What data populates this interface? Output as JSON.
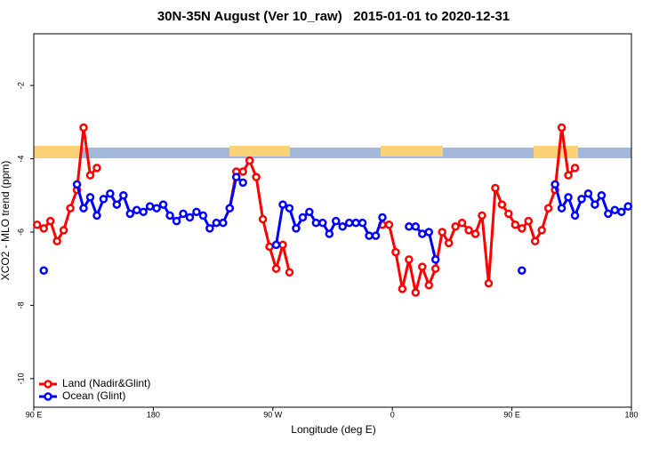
{
  "chart_data": {
    "type": "line",
    "title": "30N-35N August (Ver 10_raw)   2015-01-01 to 2020-12-31",
    "x_label": "Longitude (deg E)",
    "y_label": "XCO2 - MLO trend (ppm)",
    "xlim": [
      90,
      540
    ],
    "xticks": [
      {
        "value": 90,
        "label": "90 E"
      },
      180,
      {
        "value": 270,
        "label": "90 W"
      },
      {
        "value": 360,
        "label": "0"
      },
      {
        "value": 450,
        "label": "90 E"
      },
      180
    ],
    "ylim": [
      -10.78,
      -0.59
    ],
    "yticks": [
      -2,
      -4,
      -6,
      -8,
      -10
    ],
    "legend": "bottomleft",
    "grid": false,
    "x": [
      92.5,
      97.5,
      102.5,
      107.5,
      112.5,
      117.5,
      122.5,
      127.5,
      132.5,
      137.5,
      142.5,
      147.5,
      152.5,
      157.5,
      162.5,
      167.5,
      172.5,
      177.5,
      182.5,
      187.5,
      192.5,
      197.5,
      202.5,
      207.5,
      212.5,
      217.5,
      222.5,
      227.5,
      232.5,
      237.5,
      242.5,
      247.5,
      252.5,
      257.5,
      262.5,
      267.5,
      272.5,
      277.5,
      282.5,
      287.5,
      292.5,
      297.5,
      302.5,
      307.5,
      312.5,
      317.5,
      322.5,
      327.5,
      332.5,
      337.5,
      342.5,
      347.5,
      352.5,
      357.5,
      362.5,
      367.5,
      372.5,
      377.5,
      382.5,
      387.5,
      392.5,
      397.5,
      402.5,
      407.5,
      412.5,
      417.5,
      422.5,
      427.5,
      432.5,
      437.5,
      442.5,
      447.5,
      452.5,
      457.5,
      462.5,
      467.5,
      472.5,
      477.5,
      482.5,
      487.5,
      492.5,
      497.5,
      502.5,
      507.5,
      512.5,
      517.5,
      522.5,
      527.5,
      532.5,
      537.5
    ],
    "series": [
      {
        "name": "Land (Nadir&Glint)",
        "color": "#ff0000",
        "values": [
          -5.8,
          -5.9,
          -5.7,
          -6.25,
          -5.95,
          -5.35,
          -4.85,
          -3.15,
          -4.45,
          -4.25,
          null,
          null,
          null,
          null,
          null,
          null,
          null,
          null,
          null,
          null,
          null,
          null,
          null,
          null,
          null,
          null,
          null,
          null,
          null,
          -5.35,
          -4.35,
          -4.35,
          -4.05,
          -4.5,
          -5.65,
          -6.4,
          -7.0,
          -6.35,
          -7.1,
          null,
          null,
          null,
          null,
          null,
          null,
          null,
          null,
          null,
          null,
          null,
          null,
          null,
          -5.8,
          -5.8,
          -6.55,
          -7.55,
          -6.75,
          -7.65,
          -6.95,
          -7.45,
          -7.0,
          -6.0,
          -6.3,
          -5.85,
          -5.75,
          -5.95,
          -6.05,
          -5.55,
          -7.4,
          -4.8,
          -5.25,
          -5.5,
          -5.8,
          -5.9,
          -5.7,
          -6.25,
          -5.95,
          -5.35,
          -4.85,
          -3.15,
          -4.45,
          -4.25,
          null,
          null,
          null,
          null,
          null,
          null,
          null,
          null
        ]
      },
      {
        "name": "Ocean (Glint)",
        "color": "#0000ff",
        "values": [
          null,
          -7.05,
          null,
          null,
          null,
          null,
          -4.7,
          -5.35,
          -5.05,
          -5.55,
          -5.1,
          -4.95,
          -5.25,
          -5.0,
          -5.5,
          -5.4,
          -5.45,
          -5.3,
          -5.35,
          -5.25,
          -5.55,
          -5.7,
          -5.5,
          -5.6,
          -5.45,
          -5.55,
          -5.9,
          -5.75,
          -5.75,
          -5.35,
          -4.5,
          -4.65,
          null,
          null,
          null,
          null,
          -6.35,
          -5.25,
          -5.35,
          -5.9,
          -5.6,
          -5.45,
          -5.75,
          -5.75,
          -6.05,
          -5.7,
          -5.85,
          -5.75,
          -5.75,
          -5.75,
          -6.1,
          -6.1,
          -5.6,
          null,
          null,
          null,
          -5.85,
          -5.85,
          -6.05,
          -6.0,
          -6.75,
          null,
          null,
          null,
          null,
          null,
          null,
          null,
          null,
          null,
          null,
          null,
          null,
          -7.05,
          null,
          null,
          null,
          null,
          -4.7,
          -5.35,
          -5.05,
          -5.55,
          -5.1,
          -4.95,
          -5.25,
          -5.0,
          -5.5,
          -5.4,
          -5.45,
          -5.3
        ]
      }
    ]
  }
}
